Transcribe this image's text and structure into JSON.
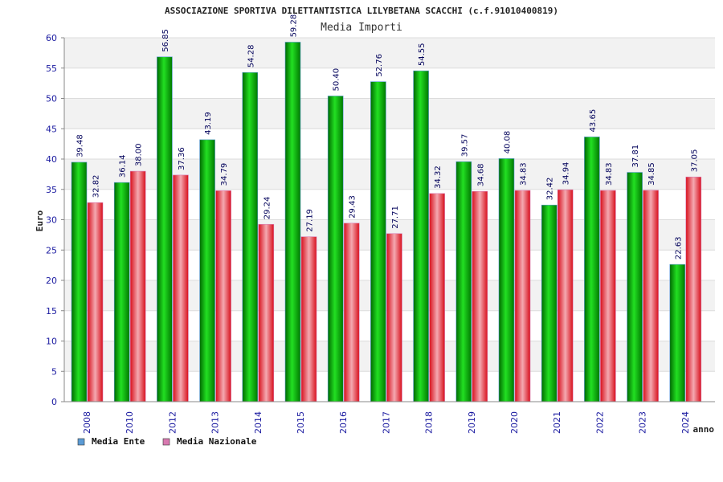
{
  "chart_data": {
    "type": "bar",
    "title": "ASSOCIAZIONE SPORTIVA DILETTANTISTICA LILYBETANA SCACCHI (c.f.91010400819)",
    "subtitle": "Media Importi",
    "ylabel": "Euro",
    "xlabel": "anno",
    "ylim": [
      0,
      60
    ],
    "yticks": [
      0,
      5,
      10,
      15,
      20,
      25,
      30,
      35,
      40,
      45,
      50,
      55,
      60
    ],
    "grid": true,
    "legend_position": "bottom-left",
    "categories": [
      "2008",
      "2010",
      "2012",
      "2013",
      "2014",
      "2015",
      "2016",
      "2017",
      "2018",
      "2019",
      "2020",
      "2021",
      "2022",
      "2023",
      "2024"
    ],
    "series": [
      {
        "name": "Media Ente",
        "color": "#00b000",
        "legend_color": "#5b9bd5",
        "values": [
          39.48,
          36.14,
          56.85,
          43.19,
          54.28,
          59.28,
          50.4,
          52.76,
          54.55,
          39.57,
          40.08,
          32.42,
          43.65,
          37.81,
          22.63
        ],
        "labels": [
          "39.48",
          "36.14",
          "56.85",
          "43.19",
          "54.28",
          "59.28",
          "50.40",
          "52.76",
          "54.55",
          "39.57",
          "40.08",
          "32.42",
          "43.65",
          "37.81",
          "22.63"
        ]
      },
      {
        "name": "Media Nazionale",
        "color": "#e8202a",
        "legend_color": "#d879b0",
        "values": [
          32.82,
          38.0,
          37.36,
          34.79,
          29.24,
          27.19,
          29.43,
          27.71,
          34.32,
          34.68,
          34.83,
          34.94,
          34.83,
          34.85,
          37.05
        ],
        "labels": [
          "32.82",
          "38.00",
          "37.36",
          "34.79",
          "29.24",
          "27.19",
          "29.43",
          "27.71",
          "34.32",
          "34.68",
          "34.83",
          "34.94",
          "34.83",
          "34.85",
          "37.05"
        ]
      }
    ]
  }
}
